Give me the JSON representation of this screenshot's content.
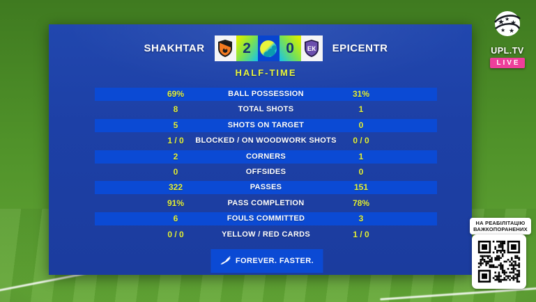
{
  "chart_data": {
    "type": "table",
    "title": "HALF-TIME",
    "teams": {
      "home": "SHAKHTAR",
      "away": "EPICENTR"
    },
    "score": {
      "home": "2",
      "away": "0"
    },
    "columns": [
      "home_value",
      "stat_label",
      "away_value"
    ],
    "rows": [
      {
        "label": "BALL POSSESSION",
        "home": "69%",
        "away": "31%"
      },
      {
        "label": "TOTAL SHOTS",
        "home": "8",
        "away": "1"
      },
      {
        "label": "SHOTS ON TARGET",
        "home": "5",
        "away": "0"
      },
      {
        "label": "BLOCKED / ON WOODWORK SHOTS",
        "home": "1 / 0",
        "away": "0 / 0"
      },
      {
        "label": "CORNERS",
        "home": "2",
        "away": "1"
      },
      {
        "label": "OFFSIDES",
        "home": "0",
        "away": "0"
      },
      {
        "label": "PASSES",
        "home": "322",
        "away": "151"
      },
      {
        "label": "PASS COMPLETION",
        "home": "91%",
        "away": "78%"
      },
      {
        "label": "FOULS COMMITTED",
        "home": "6",
        "away": "3"
      },
      {
        "label": "YELLOW / RED CARDS",
        "home": "0 / 0",
        "away": "1 / 0"
      }
    ]
  },
  "broadcaster": {
    "name": "UPL.TV",
    "live_label": "LIVE"
  },
  "sponsor": {
    "slogan": "FOREVER. FASTER."
  },
  "qr_panel": {
    "line1": "НА РЕАБІЛІТАЦІЮ",
    "line2": "ВАЖКОПОРАНЕНИХ"
  },
  "icons": {
    "home_crest": "shakhtar-crest-icon",
    "away_crest": "epicentr-crest-icon",
    "center": "league-ball-icon",
    "sponsor": "puma-cat-icon",
    "broadcaster": "upl-ball-logo-icon",
    "qr": "qr-code"
  },
  "colors": {
    "panel_blue": "#1d40a6",
    "bar_blue": "#0b4ad4",
    "value_yellow": "#e3f03a",
    "halftime_yellow": "#e8f53c",
    "score_navy": "#17336f",
    "live_pink": "#ee3f9b",
    "pitch_green": "#4f9129"
  }
}
